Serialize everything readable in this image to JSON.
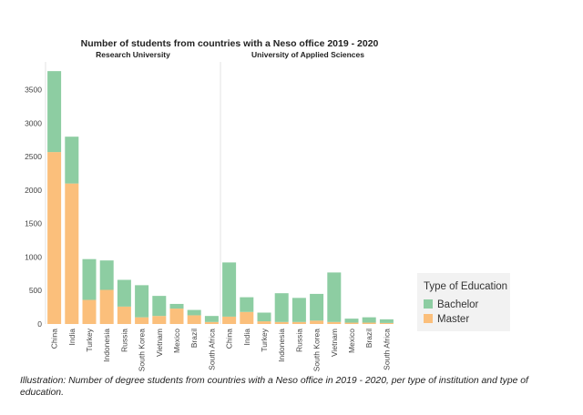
{
  "chart_data": {
    "type": "bar",
    "stacked": true,
    "title": "Number of students from countries with a Neso office 2019 - 2020",
    "yticks": [
      0,
      500,
      1000,
      1500,
      2000,
      2500,
      3000,
      3500
    ],
    "ylim": [
      0,
      3850
    ],
    "grid": false,
    "legend": {
      "title": "Type of Education",
      "position": "right",
      "entries": [
        {
          "name": "Bachelor",
          "color": "#8dcda2"
        },
        {
          "name": "Master",
          "color": "#fbbf7b"
        }
      ]
    },
    "panels": [
      {
        "name": "Research University",
        "categories": [
          "China",
          "India",
          "Turkey",
          "Indonesia",
          "Russia",
          "South Korea",
          "Vietnam",
          "Mexico",
          "Brazil",
          "South Africa"
        ],
        "series": [
          {
            "name": "Master",
            "values": [
              2570,
              2100,
              360,
              510,
              260,
              100,
              120,
              230,
              130,
              30
            ]
          },
          {
            "name": "Bachelor",
            "values": [
              1210,
              700,
              610,
              440,
              400,
              480,
              300,
              70,
              80,
              90
            ]
          }
        ]
      },
      {
        "name": "University of Applied Sciences",
        "categories": [
          "China",
          "India",
          "Turkey",
          "Indonesia",
          "Russia",
          "South Korea",
          "Vietnam",
          "Mexico",
          "Brazil",
          "South Africa"
        ],
        "series": [
          {
            "name": "Master",
            "values": [
              110,
              180,
              40,
              30,
              30,
              50,
              30,
              20,
              20,
              15
            ]
          },
          {
            "name": "Bachelor",
            "values": [
              810,
              220,
              130,
              430,
              360,
              400,
              740,
              60,
              80,
              55
            ]
          }
        ]
      }
    ]
  },
  "caption": "Illustration: Number of degree students from countries with a Neso office in 2019 - 2020, per type of institution and type of education."
}
